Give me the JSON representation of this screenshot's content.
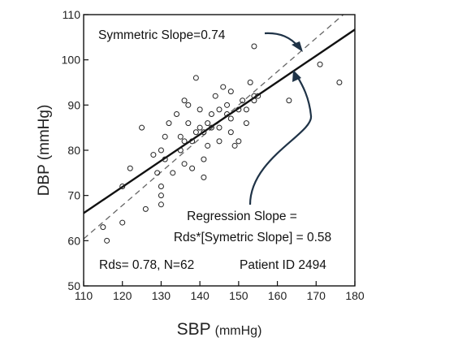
{
  "chart_data": {
    "type": "scatter",
    "xlabel": "SBP",
    "xlabel_unit": "(mmHg)",
    "ylabel": "DBP (mmHg)",
    "xlim": [
      110,
      180
    ],
    "ylim": [
      50,
      110
    ],
    "xticks": [
      110,
      120,
      130,
      140,
      150,
      160,
      170,
      180
    ],
    "yticks": [
      50,
      60,
      70,
      80,
      90,
      100,
      110
    ],
    "grid": false,
    "points": [
      [
        115,
        63
      ],
      [
        116,
        60
      ],
      [
        120,
        72
      ],
      [
        120,
        64
      ],
      [
        122,
        76
      ],
      [
        125,
        85
      ],
      [
        126,
        67
      ],
      [
        128,
        79
      ],
      [
        129,
        75
      ],
      [
        130,
        80
      ],
      [
        130,
        72
      ],
      [
        130,
        70
      ],
      [
        130,
        68
      ],
      [
        131,
        78
      ],
      [
        131,
        83
      ],
      [
        132,
        86
      ],
      [
        133,
        75
      ],
      [
        134,
        88
      ],
      [
        135,
        80
      ],
      [
        135,
        83
      ],
      [
        136,
        77
      ],
      [
        136,
        82
      ],
      [
        136,
        91
      ],
      [
        137,
        90
      ],
      [
        137,
        86
      ],
      [
        138,
        76
      ],
      [
        138,
        82
      ],
      [
        139,
        96
      ],
      [
        139,
        84
      ],
      [
        140,
        85
      ],
      [
        140,
        89
      ],
      [
        141,
        74
      ],
      [
        141,
        78
      ],
      [
        141,
        84
      ],
      [
        142,
        86
      ],
      [
        142,
        81
      ],
      [
        143,
        88
      ],
      [
        143,
        85
      ],
      [
        144,
        92
      ],
      [
        145,
        85
      ],
      [
        145,
        82
      ],
      [
        145,
        89
      ],
      [
        146,
        94
      ],
      [
        147,
        90
      ],
      [
        147,
        88
      ],
      [
        148,
        93
      ],
      [
        148,
        87
      ],
      [
        148,
        84
      ],
      [
        149,
        81
      ],
      [
        150,
        89
      ],
      [
        150,
        82
      ],
      [
        151,
        91
      ],
      [
        152,
        89
      ],
      [
        152,
        86
      ],
      [
        153,
        95
      ],
      [
        154,
        91
      ],
      [
        154,
        92
      ],
      [
        154,
        103
      ],
      [
        155,
        92
      ],
      [
        163,
        91
      ],
      [
        171,
        99
      ],
      [
        176,
        95
      ]
    ],
    "symmetric_line": {
      "x": [
        110,
        180
      ],
      "y": [
        60.4,
        112.2
      ]
    },
    "regression_line": {
      "x": [
        110,
        180
      ],
      "y": [
        66.1,
        106.7
      ]
    },
    "annotations": {
      "symmetric": "Symmetric Slope=0.74",
      "regression_line1": "Regression Slope =",
      "regression_line2": "Rds*[Symetric Slope] = 0.58",
      "stats": "Rds= 0.78,  N=62",
      "patient": "Patient ID 2494"
    }
  }
}
